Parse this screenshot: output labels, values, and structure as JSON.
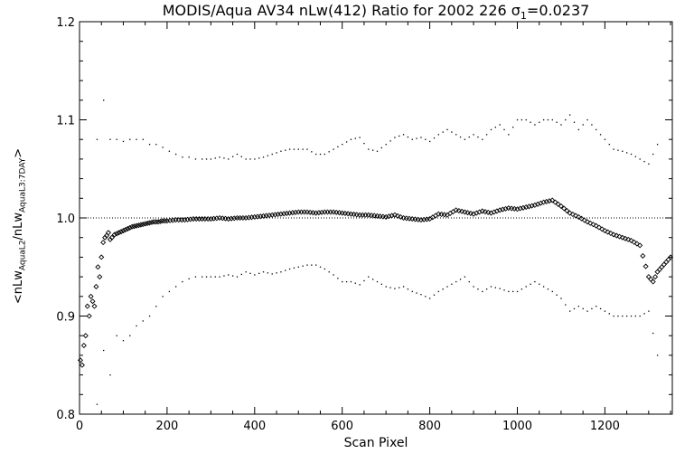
{
  "chart_data": {
    "type": "scatter",
    "title_main": "MODIS/Aqua AV34 nLw(412) Ratio for 2002 226 σ",
    "title_sub": "1",
    "title_tail": "=0.0237",
    "xlabel": "Scan Pixel",
    "ylabel_parts": [
      "<nLw",
      "AquaL2",
      "/nLw",
      "AquaL3:7DAY",
      ">"
    ],
    "xlim": [
      0,
      1354
    ],
    "ylim": [
      0.8,
      1.2
    ],
    "xticks": [
      0,
      200,
      400,
      600,
      800,
      1000,
      1200
    ],
    "yticks": [
      0.8,
      0.9,
      1.0,
      1.1,
      1.2
    ],
    "ytick_labels": [
      "0.8",
      "0.9",
      "1.0",
      "1.1",
      "1.2"
    ],
    "reference_line": 1.0,
    "series": [
      {
        "marker": "diamond",
        "x": [
          2,
          6,
          10,
          14,
          18,
          22,
          26,
          30,
          34,
          38,
          42,
          46,
          50,
          54,
          58,
          62,
          66,
          70,
          74,
          80,
          90,
          100,
          110,
          120,
          130,
          140,
          150,
          160,
          170,
          180,
          190,
          200,
          220,
          240,
          260,
          280,
          300,
          320,
          340,
          360,
          380,
          400,
          420,
          440,
          460,
          480,
          500,
          520,
          540,
          560,
          580,
          600,
          620,
          640,
          660,
          680,
          700,
          720,
          740,
          760,
          780,
          800,
          820,
          840,
          860,
          880,
          900,
          920,
          940,
          960,
          980,
          1000,
          1020,
          1040,
          1060,
          1080,
          1100,
          1120,
          1140,
          1160,
          1180,
          1200,
          1220,
          1240,
          1260,
          1280,
          1300,
          1310,
          1320,
          1330,
          1340,
          1350
        ],
        "y": [
          0.855,
          0.85,
          0.87,
          0.88,
          0.91,
          0.9,
          0.92,
          0.915,
          0.91,
          0.93,
          0.95,
          0.94,
          0.96,
          0.975,
          0.98,
          0.982,
          0.985,
          0.978,
          0.98,
          0.983,
          0.985,
          0.987,
          0.989,
          0.991,
          0.992,
          0.993,
          0.994,
          0.995,
          0.996,
          0.996,
          0.997,
          0.997,
          0.998,
          0.998,
          0.999,
          0.999,
          0.999,
          1.0,
          0.999,
          1.0,
          1.0,
          1.001,
          1.002,
          1.003,
          1.004,
          1.005,
          1.006,
          1.006,
          1.005,
          1.006,
          1.006,
          1.005,
          1.004,
          1.003,
          1.003,
          1.002,
          1.001,
          1.003,
          1.0,
          0.999,
          0.998,
          0.999,
          1.004,
          1.003,
          1.008,
          1.006,
          1.004,
          1.007,
          1.005,
          1.008,
          1.01,
          1.009,
          1.011,
          1.013,
          1.016,
          1.018,
          1.012,
          1.005,
          1.001,
          0.996,
          0.992,
          0.987,
          0.983,
          0.98,
          0.977,
          0.972,
          0.94,
          0.935,
          0.945,
          0.95,
          0.955,
          0.96
        ]
      },
      {
        "marker": "dot",
        "x": [
          40,
          55,
          70,
          85,
          100,
          115,
          130,
          145,
          160,
          175,
          190,
          205,
          220,
          235,
          250,
          265,
          280,
          300,
          320,
          340,
          360,
          380,
          400,
          420,
          440,
          460,
          480,
          500,
          520,
          540,
          560,
          580,
          600,
          620,
          640,
          660,
          680,
          700,
          720,
          740,
          760,
          780,
          800,
          820,
          840,
          860,
          880,
          900,
          920,
          940,
          960,
          980,
          1000,
          1020,
          1040,
          1060,
          1080,
          1100,
          1120,
          1140,
          1160,
          1180,
          1200,
          1220,
          1240,
          1260,
          1280,
          1300,
          1320
        ],
        "y": [
          1.08,
          1.12,
          1.08,
          1.08,
          1.078,
          1.08,
          1.08,
          1.08,
          1.075,
          1.075,
          1.072,
          1.068,
          1.065,
          1.062,
          1.062,
          1.06,
          1.06,
          1.06,
          1.062,
          1.06,
          1.065,
          1.06,
          1.06,
          1.062,
          1.065,
          1.068,
          1.07,
          1.07,
          1.07,
          1.065,
          1.065,
          1.07,
          1.075,
          1.08,
          1.082,
          1.07,
          1.068,
          1.075,
          1.082,
          1.085,
          1.08,
          1.082,
          1.078,
          1.085,
          1.09,
          1.085,
          1.08,
          1.085,
          1.08,
          1.09,
          1.095,
          1.085,
          1.1,
          1.1,
          1.095,
          1.1,
          1.1,
          1.095,
          1.105,
          1.09,
          1.1,
          1.09,
          1.08,
          1.07,
          1.068,
          1.065,
          1.06,
          1.055,
          1.075
        ]
      },
      {
        "marker": "dot",
        "x": [
          40,
          55,
          70,
          85,
          100,
          115,
          130,
          145,
          160,
          175,
          190,
          205,
          220,
          235,
          250,
          265,
          280,
          300,
          320,
          340,
          360,
          380,
          400,
          420,
          440,
          460,
          480,
          500,
          520,
          540,
          560,
          580,
          600,
          620,
          640,
          660,
          680,
          700,
          720,
          740,
          760,
          780,
          800,
          820,
          840,
          860,
          880,
          900,
          920,
          940,
          960,
          980,
          1000,
          1020,
          1040,
          1060,
          1080,
          1100,
          1120,
          1140,
          1160,
          1180,
          1200,
          1220,
          1240,
          1260,
          1280,
          1300,
          1320
        ],
        "y": [
          0.81,
          0.865,
          0.84,
          0.88,
          0.875,
          0.88,
          0.89,
          0.895,
          0.9,
          0.91,
          0.92,
          0.925,
          0.93,
          0.935,
          0.938,
          0.94,
          0.94,
          0.94,
          0.94,
          0.942,
          0.94,
          0.945,
          0.942,
          0.945,
          0.943,
          0.945,
          0.948,
          0.95,
          0.952,
          0.952,
          0.948,
          0.942,
          0.935,
          0.935,
          0.932,
          0.94,
          0.935,
          0.93,
          0.928,
          0.93,
          0.925,
          0.922,
          0.918,
          0.925,
          0.93,
          0.935,
          0.94,
          0.93,
          0.925,
          0.93,
          0.928,
          0.925,
          0.925,
          0.93,
          0.935,
          0.93,
          0.925,
          0.918,
          0.905,
          0.91,
          0.905,
          0.91,
          0.905,
          0.9,
          0.9,
          0.9,
          0.9,
          0.905,
          0.86
        ]
      }
    ]
  }
}
